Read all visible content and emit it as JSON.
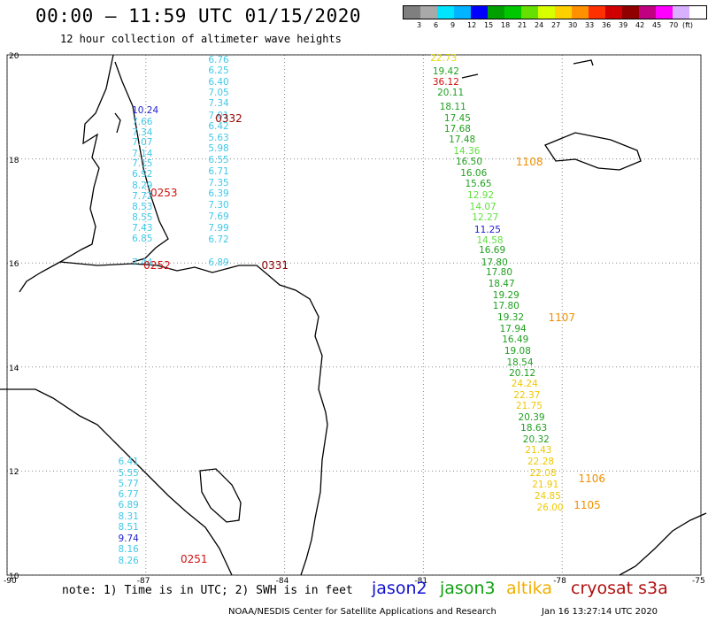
{
  "header": {
    "title": "00:00 – 11:59 UTC 01/15/2020",
    "subtitle": "12 hour collection of altimeter wave heights"
  },
  "legend": {
    "ticks": [
      "3",
      "6",
      "9",
      "12",
      "15",
      "18",
      "21",
      "24",
      "27",
      "30",
      "33",
      "36",
      "39",
      "42",
      "45",
      "70",
      "(ft)"
    ],
    "colors": [
      "#7f7f7f",
      "#a9a9a9",
      "#00e5ff",
      "#00b4ff",
      "#0000ff",
      "#00a000",
      "#00c800",
      "#66e000",
      "#d8ff00",
      "#ffd000",
      "#ff9000",
      "#ff3000",
      "#d00000",
      "#900000",
      "#c00080",
      "#ff00ff",
      "#d8b0ff",
      "#ffffff"
    ]
  },
  "axes": {
    "lon_ticks": [
      {
        "lon": -90,
        "label": "-90"
      },
      {
        "lon": -87,
        "label": "-87"
      },
      {
        "lon": -84,
        "label": "-84"
      },
      {
        "lon": -81,
        "label": "-81"
      },
      {
        "lon": -78,
        "label": "-78"
      },
      {
        "lon": -75,
        "label": "-75"
      }
    ],
    "lat_ticks": [
      {
        "lat": 20,
        "label": "20"
      },
      {
        "lat": 18,
        "label": "18"
      },
      {
        "lat": 16,
        "label": "16"
      },
      {
        "lat": 14,
        "label": "14"
      },
      {
        "lat": 12,
        "label": "12"
      },
      {
        "lat": 10,
        "label": "10"
      }
    ]
  },
  "tracks": [
    {
      "name": "jason3_west_gulf",
      "labels": [
        {
          "lon": -87.3,
          "lat": 18.93,
          "text": "10.24",
          "color": "#2020d0"
        },
        {
          "lon": -87.3,
          "lat": 18.7,
          "text": "7.66",
          "color": "#40c8e8"
        },
        {
          "lon": -87.3,
          "lat": 18.51,
          "text": "7.34",
          "color": "#40c8e8"
        },
        {
          "lon": -87.3,
          "lat": 18.31,
          "text": "7.07",
          "color": "#40c8e8"
        },
        {
          "lon": -87.3,
          "lat": 18.1,
          "text": "7.14",
          "color": "#40c8e8"
        },
        {
          "lon": -87.3,
          "lat": 17.9,
          "text": "7.15",
          "color": "#40c8e8"
        },
        {
          "lon": -87.3,
          "lat": 17.7,
          "text": "6.92",
          "color": "#40c8e8"
        },
        {
          "lon": -87.3,
          "lat": 17.49,
          "text": "8.29",
          "color": "#40c8e8"
        },
        {
          "lon": -87.3,
          "lat": 17.28,
          "text": "7.72",
          "color": "#40c8e8"
        },
        {
          "lon": -87.3,
          "lat": 17.08,
          "text": "8.53",
          "color": "#40c8e8"
        },
        {
          "lon": -87.3,
          "lat": 16.87,
          "text": "8.55",
          "color": "#40c8e8"
        },
        {
          "lon": -87.3,
          "lat": 16.67,
          "text": "7.43",
          "color": "#40c8e8"
        },
        {
          "lon": -87.3,
          "lat": 16.46,
          "text": "6.85",
          "color": "#40c8e8"
        },
        {
          "lon": -87.3,
          "lat": 16.0,
          "text": "7.44",
          "color": "#40c8e8"
        }
      ]
    },
    {
      "name": "jason3_center_gulf",
      "labels": [
        {
          "lon": -85.65,
          "lat": 19.9,
          "text": "6.76",
          "color": "#40c8e8"
        },
        {
          "lon": -85.65,
          "lat": 19.69,
          "text": "6.25",
          "color": "#40c8e8"
        },
        {
          "lon": -85.65,
          "lat": 19.48,
          "text": "6.40",
          "color": "#40c8e8"
        },
        {
          "lon": -85.65,
          "lat": 19.27,
          "text": "7.05",
          "color": "#40c8e8"
        },
        {
          "lon": -85.65,
          "lat": 19.06,
          "text": "7.34",
          "color": "#40c8e8"
        },
        {
          "lon": -85.65,
          "lat": 18.83,
          "text": "7.01",
          "color": "#40c8e8"
        },
        {
          "lon": -85.65,
          "lat": 18.62,
          "text": "6.42",
          "color": "#40c8e8"
        },
        {
          "lon": -85.65,
          "lat": 18.4,
          "text": "5.63",
          "color": "#40c8e8"
        },
        {
          "lon": -85.65,
          "lat": 18.19,
          "text": "5.98",
          "color": "#40c8e8"
        },
        {
          "lon": -85.65,
          "lat": 17.97,
          "text": "6.55",
          "color": "#40c8e8"
        },
        {
          "lon": -85.65,
          "lat": 17.76,
          "text": "6.71",
          "color": "#40c8e8"
        },
        {
          "lon": -85.65,
          "lat": 17.54,
          "text": "7.35",
          "color": "#40c8e8"
        },
        {
          "lon": -85.65,
          "lat": 17.33,
          "text": "6.39",
          "color": "#40c8e8"
        },
        {
          "lon": -85.65,
          "lat": 17.11,
          "text": "7.30",
          "color": "#40c8e8"
        },
        {
          "lon": -85.65,
          "lat": 16.88,
          "text": "7.69",
          "color": "#40c8e8"
        },
        {
          "lon": -85.65,
          "lat": 16.66,
          "text": "7.99",
          "color": "#40c8e8"
        },
        {
          "lon": -85.65,
          "lat": 16.44,
          "text": "6.72",
          "color": "#40c8e8"
        },
        {
          "lon": -85.65,
          "lat": 16.0,
          "text": "6.89",
          "color": "#40c8e8"
        }
      ]
    },
    {
      "name": "jason3_south_coast",
      "labels": [
        {
          "lon": -87.6,
          "lat": 12.17,
          "text": "6.41",
          "color": "#40c8e8"
        },
        {
          "lon": -87.6,
          "lat": 11.96,
          "text": "5.55",
          "color": "#40c8e8"
        },
        {
          "lon": -87.6,
          "lat": 11.76,
          "text": "5.77",
          "color": "#40c8e8"
        },
        {
          "lon": -87.6,
          "lat": 11.55,
          "text": "6.77",
          "color": "#40c8e8"
        },
        {
          "lon": -87.6,
          "lat": 11.34,
          "text": "6.89",
          "color": "#40c8e8"
        },
        {
          "lon": -87.6,
          "lat": 11.13,
          "text": "8.31",
          "color": "#40c8e8"
        },
        {
          "lon": -87.6,
          "lat": 10.92,
          "text": "8.51",
          "color": "#40c8e8"
        },
        {
          "lon": -87.6,
          "lat": 10.7,
          "text": "9.74",
          "color": "#2020d0"
        },
        {
          "lon": -87.6,
          "lat": 10.49,
          "text": "8.16",
          "color": "#40c8e8"
        },
        {
          "lon": -87.6,
          "lat": 10.28,
          "text": "8.26",
          "color": "#40c8e8"
        }
      ]
    },
    {
      "name": "east_track",
      "labels": [
        {
          "lon": -80.85,
          "lat": 19.93,
          "text": "22.73",
          "color": "#e8d800"
        },
        {
          "lon": -80.8,
          "lat": 19.68,
          "text": "19.42",
          "color": "#20a020"
        },
        {
          "lon": -80.8,
          "lat": 19.47,
          "text": "36.12",
          "color": "#d01010"
        },
        {
          "lon": -80.7,
          "lat": 19.27,
          "text": "20.11",
          "color": "#20a020"
        },
        {
          "lon": -80.65,
          "lat": 18.99,
          "text": "18.11",
          "color": "#20a020"
        },
        {
          "lon": -80.55,
          "lat": 18.78,
          "text": "17.45",
          "color": "#20a020"
        },
        {
          "lon": -80.55,
          "lat": 18.57,
          "text": "17.68",
          "color": "#20a020"
        },
        {
          "lon": -80.45,
          "lat": 18.36,
          "text": "17.48",
          "color": "#20a020"
        },
        {
          "lon": -80.35,
          "lat": 18.14,
          "text": "14.36",
          "color": "#60e040"
        },
        {
          "lon": -80.3,
          "lat": 17.94,
          "text": "16.50",
          "color": "#20a020"
        },
        {
          "lon": -80.2,
          "lat": 17.72,
          "text": "16.06",
          "color": "#20a020"
        },
        {
          "lon": -80.1,
          "lat": 17.51,
          "text": "15.65",
          "color": "#20a020"
        },
        {
          "lon": -80.05,
          "lat": 17.29,
          "text": "12.92",
          "color": "#60e040"
        },
        {
          "lon": -80.0,
          "lat": 17.08,
          "text": "14.07",
          "color": "#60e040"
        },
        {
          "lon": -79.95,
          "lat": 16.87,
          "text": "12.27",
          "color": "#60e040"
        },
        {
          "lon": -79.9,
          "lat": 16.64,
          "text": "11.25",
          "color": "#2020d0"
        },
        {
          "lon": -79.85,
          "lat": 16.43,
          "text": "14.58",
          "color": "#60e040"
        },
        {
          "lon": -79.8,
          "lat": 16.24,
          "text": "16.69",
          "color": "#20a020"
        },
        {
          "lon": -79.75,
          "lat": 16.01,
          "text": "17.80",
          "color": "#20a020"
        },
        {
          "lon": -79.65,
          "lat": 15.82,
          "text": "17.80",
          "color": "#20a020"
        },
        {
          "lon": -79.6,
          "lat": 15.6,
          "text": "18.47",
          "color": "#20a020"
        },
        {
          "lon": -79.5,
          "lat": 15.38,
          "text": "19.29",
          "color": "#20a020"
        },
        {
          "lon": -79.5,
          "lat": 15.17,
          "text": "17.80",
          "color": "#20a020"
        },
        {
          "lon": -79.4,
          "lat": 14.95,
          "text": "19.32",
          "color": "#20a020"
        },
        {
          "lon": -79.35,
          "lat": 14.73,
          "text": "17.94",
          "color": "#20a020"
        },
        {
          "lon": -79.3,
          "lat": 14.52,
          "text": "16.49",
          "color": "#20a020"
        },
        {
          "lon": -79.25,
          "lat": 14.31,
          "text": "19.08",
          "color": "#20a020"
        },
        {
          "lon": -79.2,
          "lat": 14.09,
          "text": "18.54",
          "color": "#20a020"
        },
        {
          "lon": -79.15,
          "lat": 13.88,
          "text": "20.12",
          "color": "#20a020"
        },
        {
          "lon": -79.1,
          "lat": 13.67,
          "text": "24.24",
          "color": "#f0c800"
        },
        {
          "lon": -79.05,
          "lat": 13.46,
          "text": "22.37",
          "color": "#f0c800"
        },
        {
          "lon": -79.0,
          "lat": 13.25,
          "text": "21.75",
          "color": "#f0c800"
        },
        {
          "lon": -78.95,
          "lat": 13.03,
          "text": "20.39",
          "color": "#20a020"
        },
        {
          "lon": -78.9,
          "lat": 12.82,
          "text": "18.63",
          "color": "#20a020"
        },
        {
          "lon": -78.85,
          "lat": 12.6,
          "text": "20.32",
          "color": "#20a020"
        },
        {
          "lon": -78.8,
          "lat": 12.39,
          "text": "21.43",
          "color": "#f0c800"
        },
        {
          "lon": -78.75,
          "lat": 12.17,
          "text": "22.28",
          "color": "#f0c800"
        },
        {
          "lon": -78.7,
          "lat": 11.95,
          "text": "22.08",
          "color": "#f0c800"
        },
        {
          "lon": -78.65,
          "lat": 11.74,
          "text": "21.91",
          "color": "#f0c800"
        },
        {
          "lon": -78.6,
          "lat": 11.52,
          "text": "24.85",
          "color": "#f0c800"
        },
        {
          "lon": -78.55,
          "lat": 11.3,
          "text": "26.00",
          "color": "#f0c800"
        }
      ]
    }
  ],
  "pass_times": [
    {
      "lon": -85.5,
      "lat": 18.78,
      "text": "0332",
      "color": "#900000"
    },
    {
      "lon": -86.9,
      "lat": 17.34,
      "text": "0253",
      "color": "#d01010"
    },
    {
      "lon": -87.05,
      "lat": 15.96,
      "text": "0252",
      "color": "#d01010"
    },
    {
      "lon": -84.5,
      "lat": 15.96,
      "text": "0331",
      "color": "#900000"
    },
    {
      "lon": -86.25,
      "lat": 10.3,
      "text": "0251",
      "color": "#d01010"
    },
    {
      "lon": -79.0,
      "lat": 17.95,
      "text": "1108",
      "color": "#f09000"
    },
    {
      "lon": -78.3,
      "lat": 14.95,
      "text": "1107",
      "color": "#f09000"
    },
    {
      "lon": -77.65,
      "lat": 11.86,
      "text": "1106",
      "color": "#f09000"
    },
    {
      "lon": -77.75,
      "lat": 11.35,
      "text": "1105",
      "color": "#f09000"
    }
  ],
  "footer": {
    "note": "note:  1) Time is in UTC;  2) SWH is in feet",
    "satellites": [
      {
        "name": "jason2",
        "color": "#1010d0"
      },
      {
        "name": "jason3",
        "color": "#10a010"
      },
      {
        "name": "altika",
        "color": "#f0b000"
      },
      {
        "name": "cryosat s3a",
        "color": "#b01010"
      }
    ],
    "credit": "NOAA/NESDIS Center for Satellite Applications and Research",
    "timestamp": "Jan 16 13:27:14 UTC 2020"
  }
}
